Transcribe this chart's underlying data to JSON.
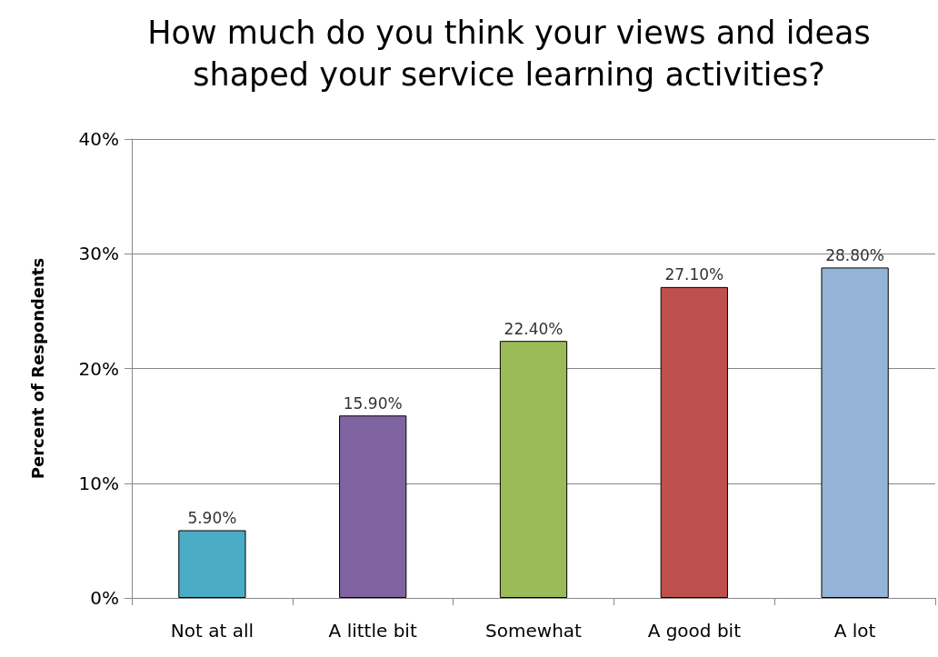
{
  "chart_data": {
    "type": "bar",
    "title": "How much do you think your views and ideas\nshaped your service learning activities?",
    "ylabel": "Percent of Respondents",
    "categories": [
      "Not at all",
      "A little bit",
      "Somewhat",
      "A good bit",
      "A lot"
    ],
    "values": [
      5.9,
      15.9,
      22.4,
      27.1,
      28.8
    ],
    "colors": [
      "#4bacc6",
      "#8064a2",
      "#9bbb59",
      "#c0504d",
      "#95b3d7"
    ],
    "value_labels": [
      "5.90%",
      "15.90%",
      "22.40%",
      "27.10%",
      "28.80%"
    ],
    "ylim": [
      0,
      40
    ],
    "yticks": [
      {
        "value": 0,
        "label": "0%"
      },
      {
        "value": 10,
        "label": "10%"
      },
      {
        "value": 20,
        "label": "20%"
      },
      {
        "value": 30,
        "label": "30%"
      },
      {
        "value": 40,
        "label": "40%"
      }
    ],
    "grid": "y"
  }
}
